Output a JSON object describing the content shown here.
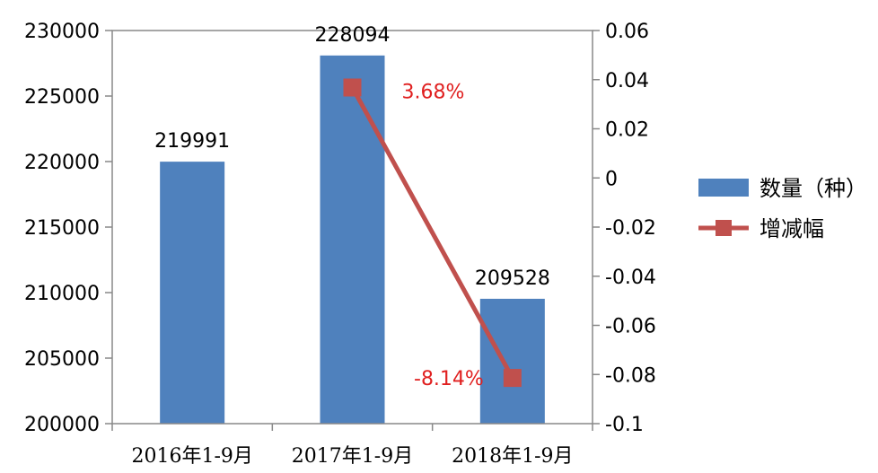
{
  "chart_data": {
    "type": "bar",
    "categories": [
      "2016年1-9月",
      "2017年1-9月",
      "2018年1-9月"
    ],
    "series": [
      {
        "name": "数量（种）",
        "type": "bar",
        "axis": "left",
        "color": "#4f81bd",
        "values": [
          219991,
          228094,
          209528
        ],
        "labels": [
          "219991",
          "228094",
          "209528"
        ]
      },
      {
        "name": "增减幅",
        "type": "line",
        "axis": "right",
        "color": "#c0504d",
        "values": [
          null,
          0.0368,
          -0.0814
        ],
        "labels": [
          "",
          "3.68%",
          "-8.14%"
        ]
      }
    ],
    "y_left": {
      "min": 200000,
      "max": 230000,
      "ticks": [
        "200000",
        "205000",
        "210000",
        "215000",
        "220000",
        "225000",
        "230000"
      ]
    },
    "y_right": {
      "min": -0.1,
      "max": 0.06,
      "ticks": [
        "-0.1",
        "-0.08",
        "-0.06",
        "-0.04",
        "-0.02",
        "0",
        "0.02",
        "0.04",
        "0.06"
      ]
    },
    "grid": false,
    "legend": "right"
  }
}
